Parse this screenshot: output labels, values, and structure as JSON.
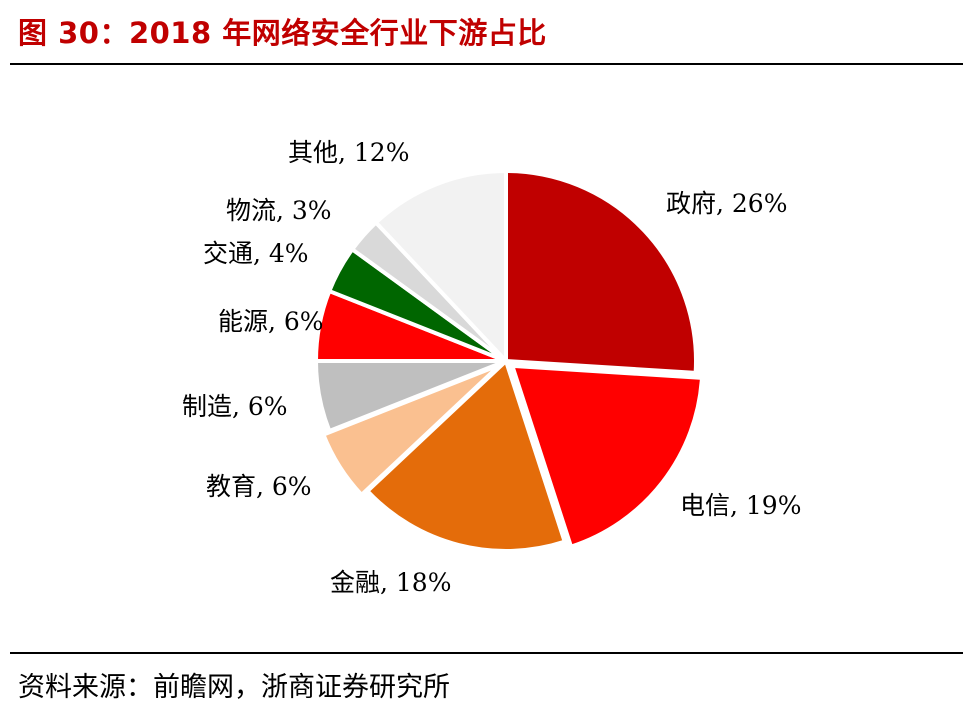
{
  "title": "图 30：2018 年网络安全行业下游占比",
  "source": "资料来源：前瞻网，浙商证券研究所",
  "chart_data": {
    "type": "pie",
    "title": "2018 年网络安全行业下游占比",
    "categories": [
      "政府",
      "电信",
      "金融",
      "教育",
      "制造",
      "能源",
      "交通",
      "物流",
      "其他"
    ],
    "values": [
      26,
      19,
      18,
      6,
      6,
      6,
      4,
      3,
      12
    ],
    "labels": [
      "政府, 26%",
      "电信, 19%",
      "金融, 18%",
      "教育, 6%",
      "制造, 6%",
      "能源, 6%",
      "交通, 4%",
      "物流, 3%",
      "其他, 12%"
    ],
    "colors": [
      "#c00000",
      "#ff0000",
      "#e46c0a",
      "#fac090",
      "#bfbfbf",
      "#ff0000",
      "#006600",
      "#d9d9d9",
      "#f2f2f2"
    ],
    "legend": "none"
  }
}
